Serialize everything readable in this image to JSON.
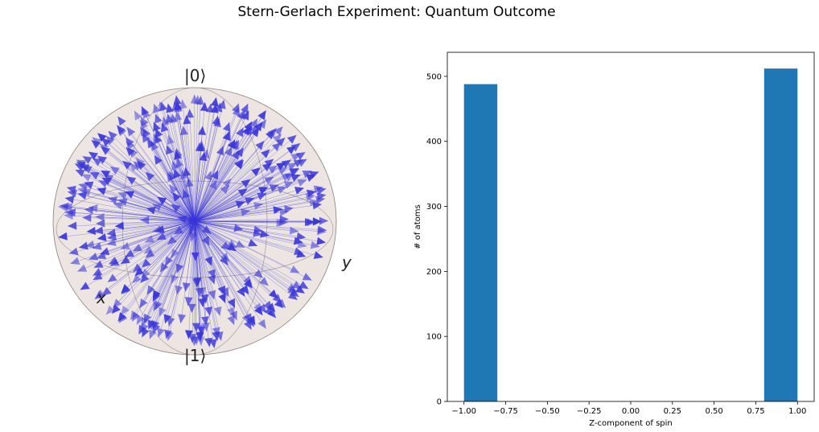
{
  "title": "Stern-Gerlach Experiment: Quantum Outcome",
  "colors": {
    "bar": "#1f77b4",
    "arrow": "#3a36d9",
    "sphere": "#e6dcd8",
    "sphere_edge": "#8a7f7b"
  },
  "bloch": {
    "label_top": "|0⟩",
    "label_bottom": "|1⟩",
    "label_y": "y",
    "label_x": "x"
  },
  "chart_data": {
    "type": "bar",
    "xlabel": "Z-component of spin",
    "ylabel": "# of atoms",
    "xlim": [
      -1.1,
      1.1
    ],
    "ylim": [
      0,
      537
    ],
    "x_ticks": [
      "−1.00",
      "−0.75",
      "−0.50",
      "−0.25",
      "0.00",
      "0.25",
      "0.50",
      "0.75",
      "1.00"
    ],
    "x_tick_values": [
      -1.0,
      -0.75,
      -0.5,
      -0.25,
      0.0,
      0.25,
      0.5,
      0.75,
      1.0
    ],
    "y_ticks": [
      "0",
      "100",
      "200",
      "300",
      "400",
      "500"
    ],
    "y_tick_values": [
      0,
      100,
      200,
      300,
      400,
      500
    ],
    "bins": [
      {
        "x0": -1.0,
        "x1": -0.8,
        "count": 488
      },
      {
        "x0": 0.8,
        "x1": 1.0,
        "count": 512
      }
    ],
    "grid": false
  }
}
